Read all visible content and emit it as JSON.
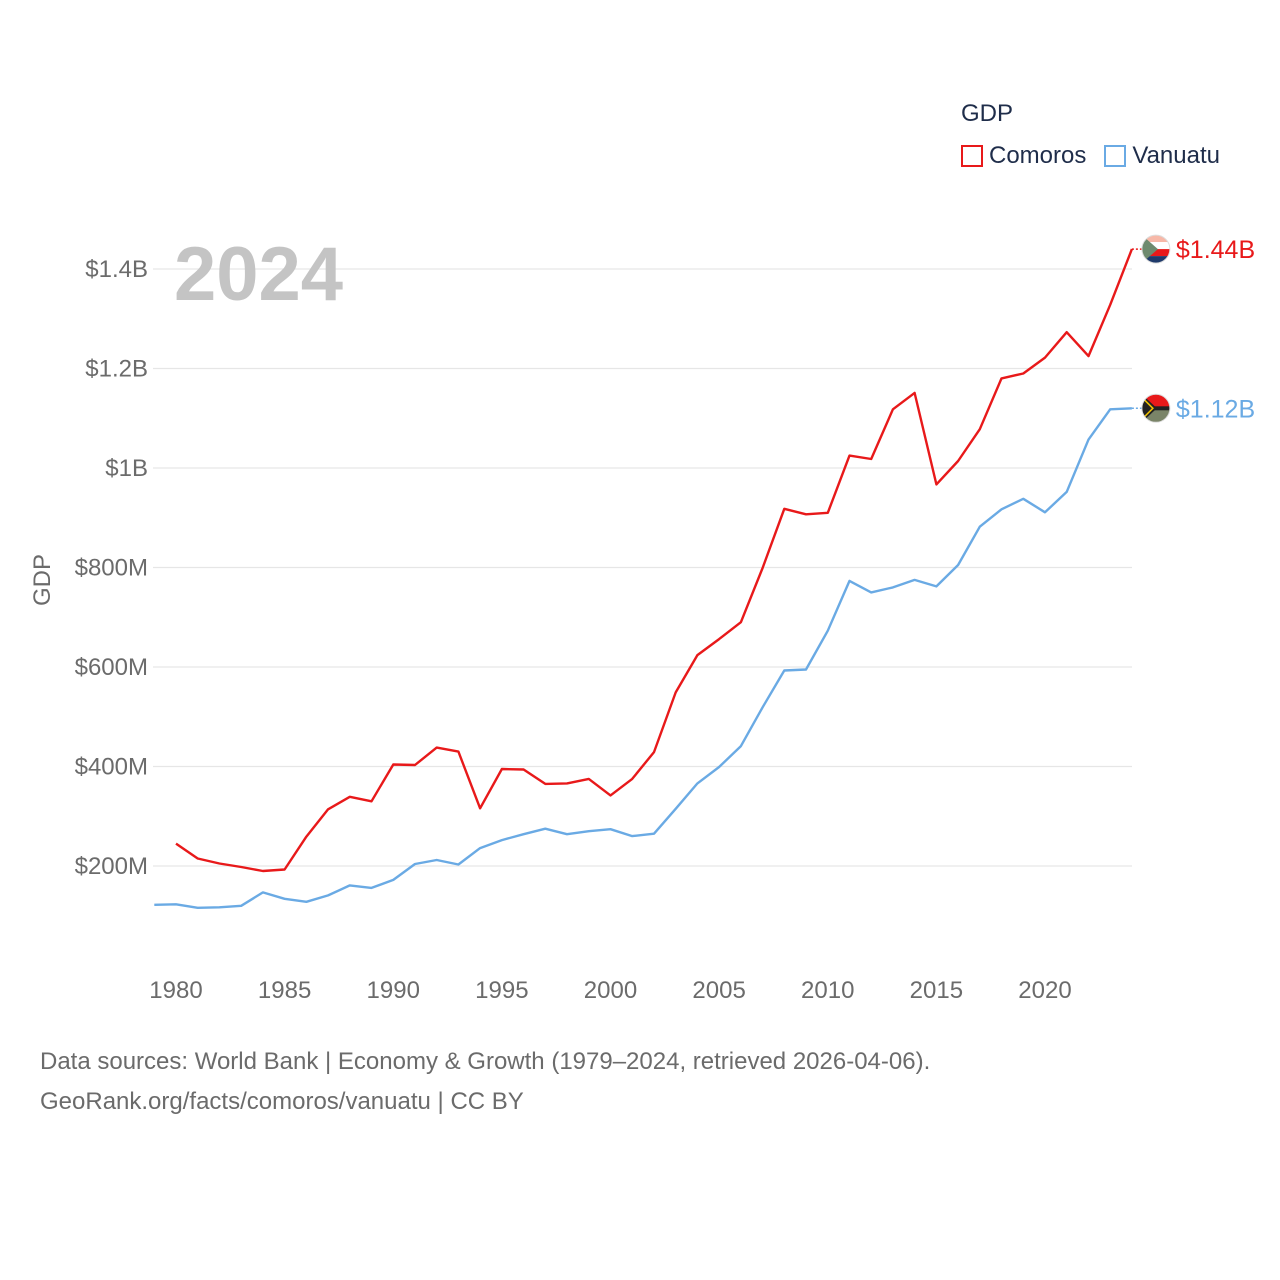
{
  "legend": {
    "title": "GDP"
  },
  "source": {
    "line1": "Data sources: World Bank | Economy & Growth (1979–2024, retrieved 2026-04-06).",
    "line2": "GeoRank.org/facts/comoros/vanuatu | CC BY"
  },
  "chart_data": {
    "type": "line",
    "title": "",
    "watermark_year": "2024",
    "xlabel": "",
    "ylabel": "GDP",
    "xlim": [
      1979,
      2024
    ],
    "ylim": [
      0,
      1550000000
    ],
    "grid": true,
    "legend_position": "top-right",
    "x_ticks": [
      1980,
      1985,
      1990,
      1995,
      2000,
      2005,
      2010,
      2015,
      2020
    ],
    "x_tick_labels": [
      "1980",
      "1985",
      "1990",
      "1995",
      "2000",
      "2005",
      "2010",
      "2015",
      "2020"
    ],
    "y_ticks": [
      200000000,
      400000000,
      600000000,
      800000000,
      1000000000,
      1200000000,
      1400000000
    ],
    "y_tick_labels": [
      "$200M",
      "$400M",
      "$600M",
      "$800M",
      "$1B",
      "$1.2B",
      "$1.4B"
    ],
    "series": [
      {
        "name": "Comoros",
        "color": "#e8191a",
        "end_label": "$1.44B",
        "flag_icon": "comoros-flag-icon",
        "x": [
          1980,
          1981,
          1982,
          1983,
          1984,
          1985,
          1986,
          1987,
          1988,
          1989,
          1990,
          1991,
          1992,
          1993,
          1994,
          1995,
          1996,
          1997,
          1998,
          1999,
          2000,
          2001,
          2002,
          2003,
          2004,
          2005,
          2006,
          2007,
          2008,
          2009,
          2010,
          2011,
          2012,
          2013,
          2014,
          2015,
          2016,
          2017,
          2018,
          2019,
          2020,
          2021,
          2022,
          2023,
          2024
        ],
        "values": [
          245000000,
          215000000,
          205000000,
          198000000,
          190000000,
          193000000,
          259000000,
          314000000,
          339000000,
          330000000,
          404000000,
          403000000,
          438000000,
          430000000,
          316000000,
          395000000,
          394000000,
          365000000,
          366000000,
          375000000,
          342000000,
          375000000,
          429000000,
          549000000,
          624000000,
          656000000,
          690000000,
          799000000,
          918000000,
          907000000,
          910000000,
          1025000000,
          1018000000,
          1118000000,
          1151000000,
          967000000,
          1014000000,
          1078000000,
          1180000000,
          1190000000,
          1222000000,
          1273000000,
          1225000000,
          1328000000,
          1440000000
        ]
      },
      {
        "name": "Vanuatu",
        "color": "#6aaae4",
        "end_label": "$1.12B",
        "flag_icon": "vanuatu-flag-icon",
        "x": [
          1979,
          1980,
          1981,
          1982,
          1983,
          1984,
          1985,
          1986,
          1987,
          1988,
          1989,
          1990,
          1991,
          1992,
          1993,
          1994,
          1995,
          1996,
          1997,
          1998,
          1999,
          2000,
          2001,
          2002,
          2003,
          2004,
          2005,
          2006,
          2007,
          2008,
          2009,
          2010,
          2011,
          2012,
          2013,
          2014,
          2015,
          2016,
          2017,
          2018,
          2019,
          2020,
          2021,
          2022,
          2023,
          2024
        ],
        "values": [
          122000000,
          123000000,
          116000000,
          117000000,
          120000000,
          147000000,
          134000000,
          128000000,
          141000000,
          161000000,
          156000000,
          172000000,
          204000000,
          212000000,
          203000000,
          236000000,
          252000000,
          264000000,
          275000000,
          264000000,
          270000000,
          274000000,
          260000000,
          265000000,
          315000000,
          366000000,
          399000000,
          441000000,
          519000000,
          593000000,
          595000000,
          673000000,
          773000000,
          750000000,
          760000000,
          775000000,
          762000000,
          805000000,
          882000000,
          917000000,
          938000000,
          911000000,
          952000000,
          1057000000,
          1118000000,
          1120000000
        ]
      }
    ]
  }
}
